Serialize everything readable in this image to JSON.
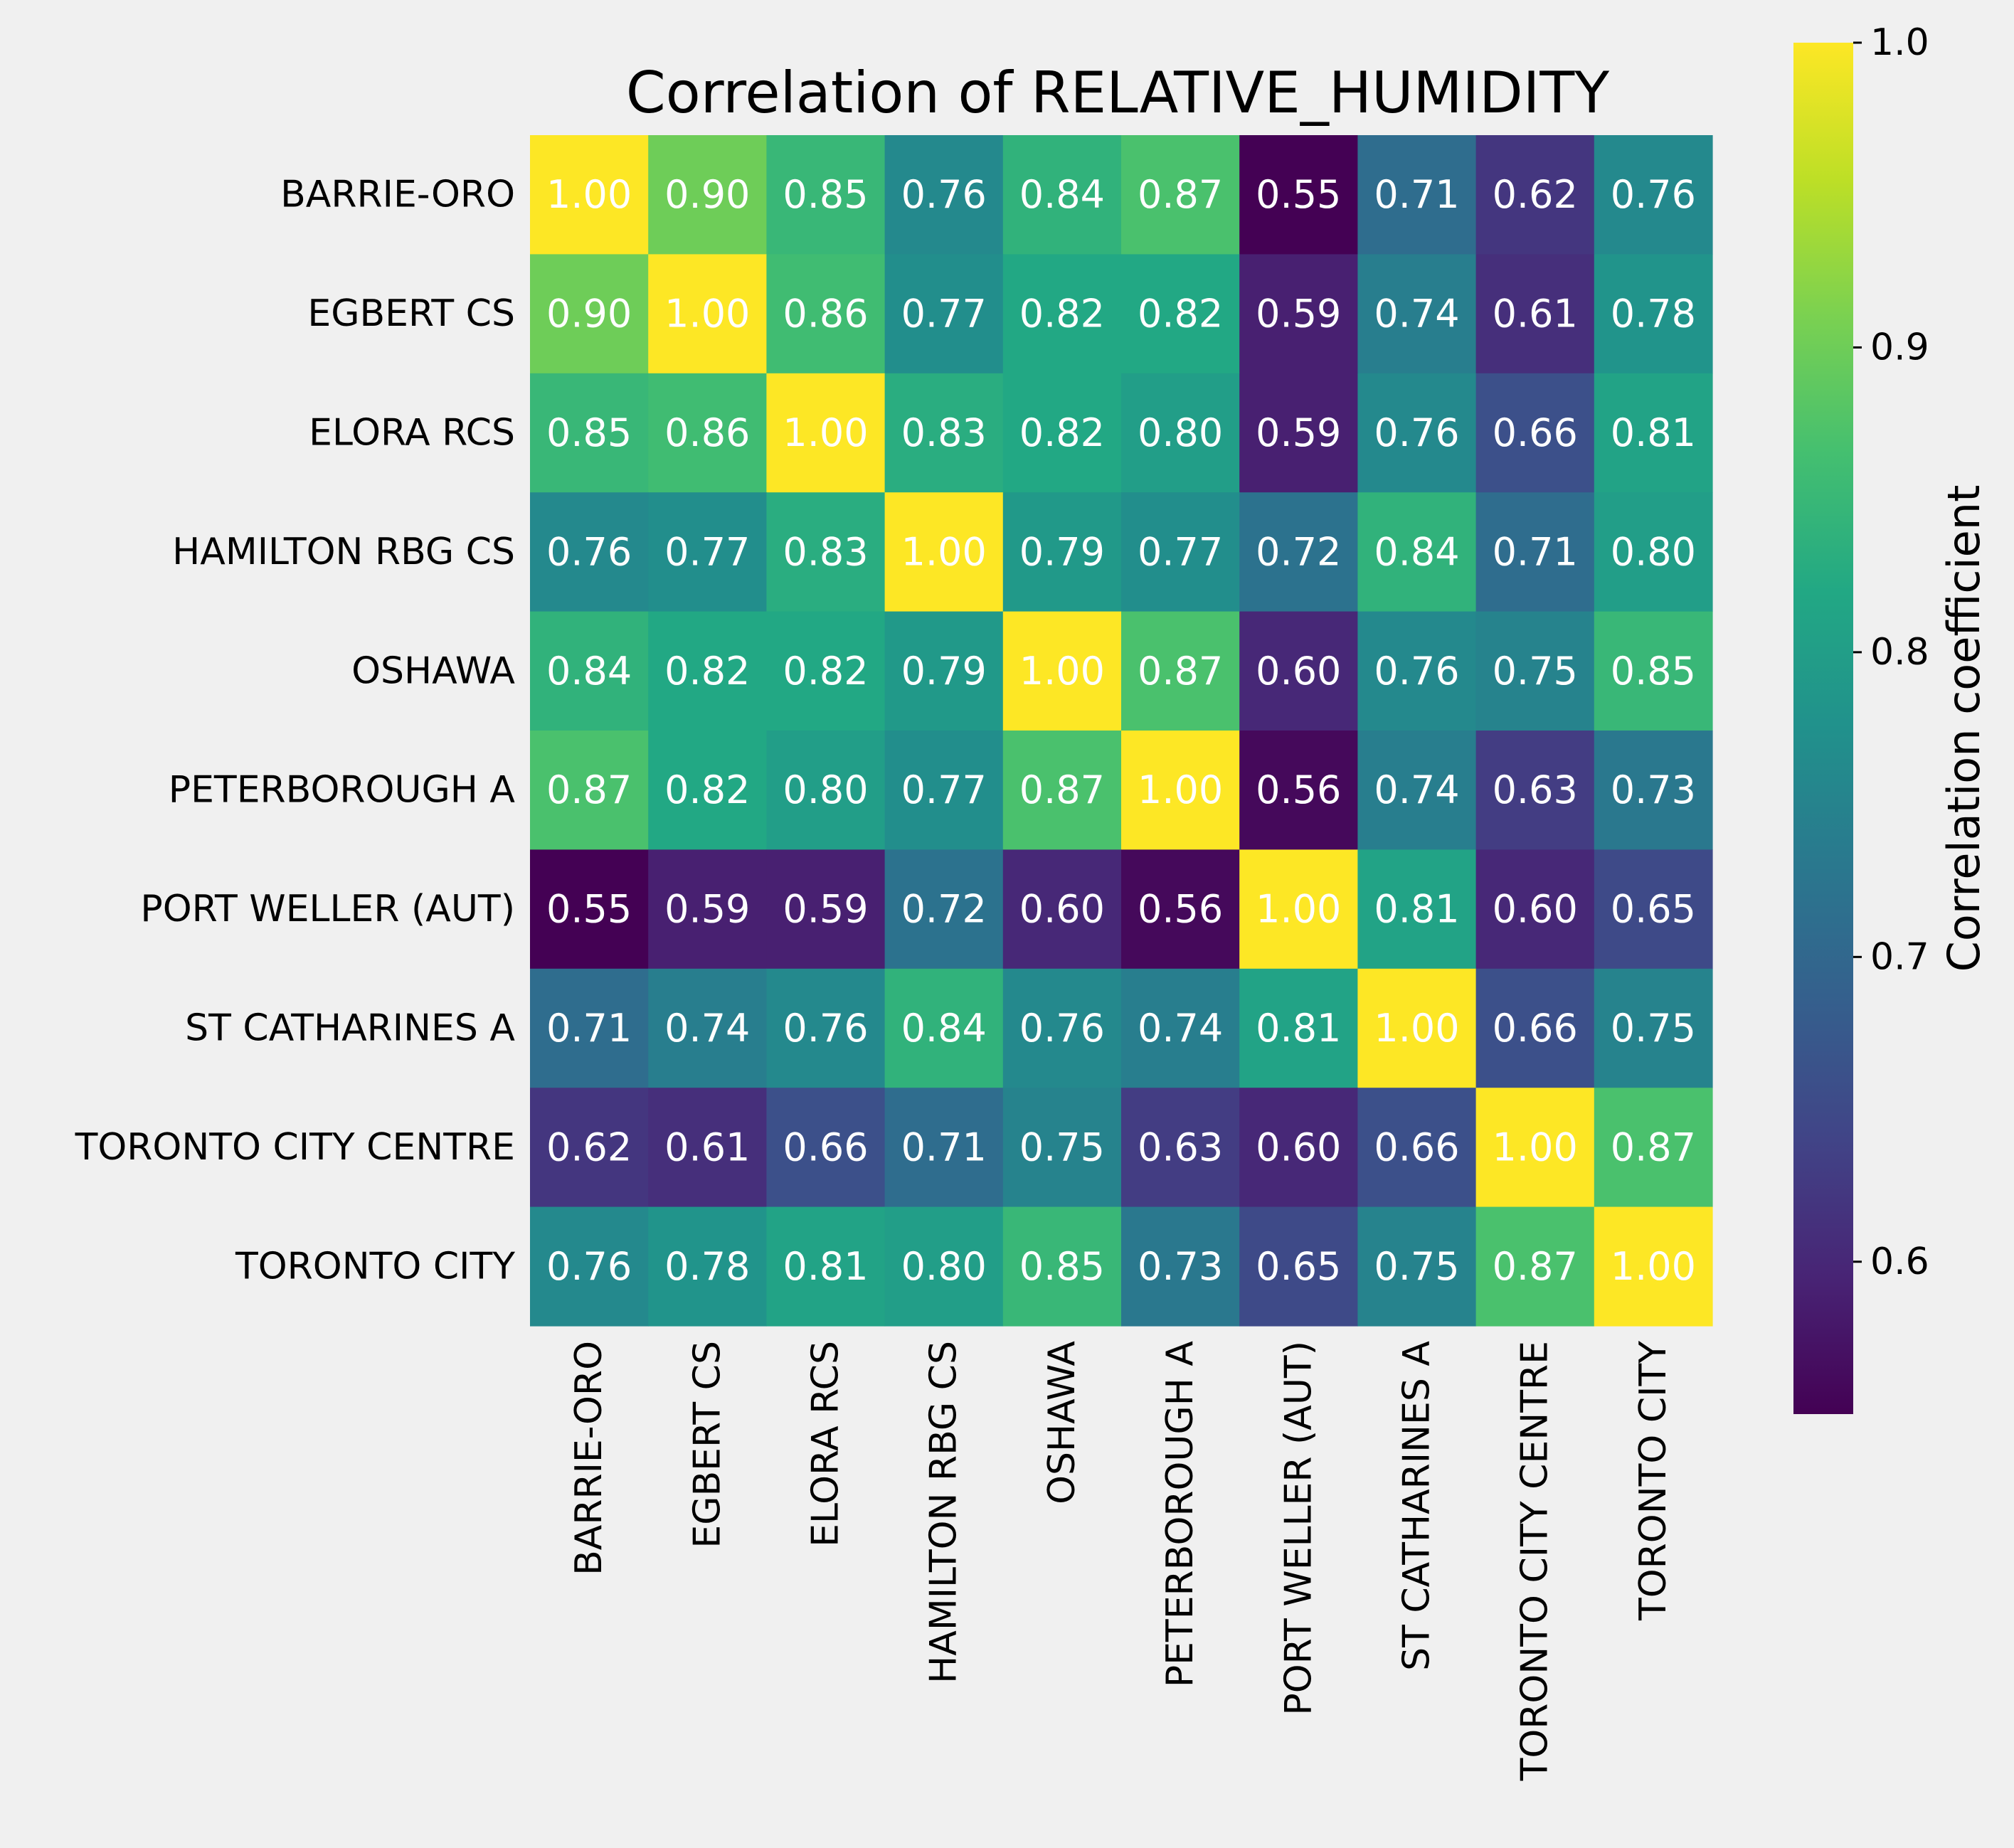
{
  "chart_data": {
    "type": "heatmap",
    "title": "Correlation of RELATIVE_HUMIDITY",
    "rows": [
      "BARRIE-ORO",
      "EGBERT CS",
      "ELORA RCS",
      "HAMILTON RBG CS",
      "OSHAWA",
      "PETERBOROUGH A",
      "PORT WELLER (AUT)",
      "ST CATHARINES A",
      "TORONTO CITY CENTRE",
      "TORONTO CITY"
    ],
    "columns": [
      "BARRIE-ORO",
      "EGBERT CS",
      "ELORA RCS",
      "HAMILTON RBG CS",
      "OSHAWA",
      "PETERBOROUGH A",
      "PORT WELLER (AUT)",
      "ST CATHARINES A",
      "TORONTO CITY CENTRE",
      "TORONTO CITY"
    ],
    "values": [
      [
        1.0,
        0.9,
        0.85,
        0.76,
        0.84,
        0.87,
        0.55,
        0.71,
        0.62,
        0.76
      ],
      [
        0.9,
        1.0,
        0.86,
        0.77,
        0.82,
        0.82,
        0.59,
        0.74,
        0.61,
        0.78
      ],
      [
        0.85,
        0.86,
        1.0,
        0.83,
        0.82,
        0.8,
        0.59,
        0.76,
        0.66,
        0.81
      ],
      [
        0.76,
        0.77,
        0.83,
        1.0,
        0.79,
        0.77,
        0.72,
        0.84,
        0.71,
        0.8
      ],
      [
        0.84,
        0.82,
        0.82,
        0.79,
        1.0,
        0.87,
        0.6,
        0.76,
        0.75,
        0.85
      ],
      [
        0.87,
        0.82,
        0.8,
        0.77,
        0.87,
        1.0,
        0.56,
        0.74,
        0.63,
        0.73
      ],
      [
        0.55,
        0.59,
        0.59,
        0.72,
        0.6,
        0.56,
        1.0,
        0.81,
        0.6,
        0.65
      ],
      [
        0.71,
        0.74,
        0.76,
        0.84,
        0.76,
        0.74,
        0.81,
        1.0,
        0.66,
        0.75
      ],
      [
        0.62,
        0.61,
        0.66,
        0.71,
        0.75,
        0.63,
        0.6,
        0.66,
        1.0,
        0.87
      ],
      [
        0.76,
        0.78,
        0.81,
        0.8,
        0.85,
        0.73,
        0.65,
        0.75,
        0.87,
        1.0
      ]
    ],
    "value_format": "0.00",
    "colormap": "viridis",
    "colorbar": {
      "label": "Correlation coefficient",
      "range": [
        0.55,
        1.0
      ],
      "ticks": [
        0.6,
        0.7,
        0.8,
        0.9,
        1.0
      ],
      "tick_labels": [
        "0.6",
        "0.7",
        "0.8",
        "0.9",
        "1.0"
      ]
    },
    "grid": false
  },
  "colors": {
    "background": "#f0f0f0",
    "cell_text": "#ffffff",
    "axis_text": "#000000"
  }
}
